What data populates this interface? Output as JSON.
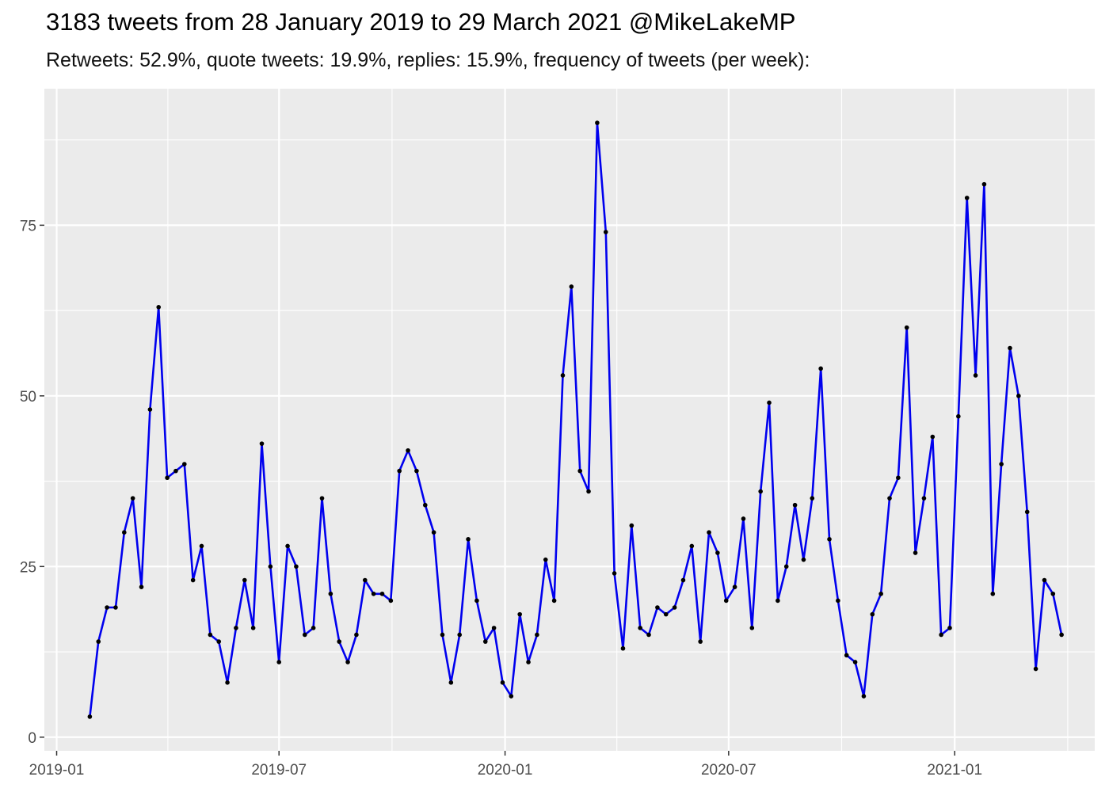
{
  "title": "3183 tweets from 28 January 2019 to 29 March 2021 @MikeLakeMP",
  "subtitle": "Retweets: 52.9%, quote tweets: 19.9%, replies: 15.9%, frequency of tweets (per week):",
  "colors": {
    "panel": "#ebebeb",
    "grid": "#ffffff",
    "line": "#0000ee",
    "point": "#000000",
    "tick_text": "#4d4d4d"
  },
  "chart_data": {
    "type": "line",
    "title": "3183 tweets from 28 January 2019 to 29 March 2021 @MikeLakeMP",
    "subtitle": "Retweets: 52.9%, quote tweets: 19.9%, replies: 15.9%, frequency of tweets (per week):",
    "xlabel": "",
    "ylabel": "",
    "grid": true,
    "legend": "none",
    "x_axis": {
      "type": "date",
      "range": [
        "2018-12-22",
        "2021-04-25"
      ],
      "ticks": [
        "2019-01",
        "2019-07",
        "2020-01",
        "2020-07",
        "2021-01"
      ]
    },
    "y_axis": {
      "range": [
        -2,
        95
      ],
      "ticks": [
        "0",
        "25",
        "50",
        "75"
      ]
    },
    "series": [
      {
        "x": [
          "2019-01-28",
          "2019-02-04",
          "2019-02-11",
          "2019-02-18",
          "2019-02-25",
          "2019-03-04",
          "2019-03-11",
          "2019-03-18",
          "2019-03-25",
          "2019-04-01",
          "2019-04-08",
          "2019-04-15",
          "2019-04-22",
          "2019-04-29",
          "2019-05-06",
          "2019-05-13",
          "2019-05-20",
          "2019-05-27",
          "2019-06-03",
          "2019-06-10",
          "2019-06-17",
          "2019-06-24",
          "2019-07-01",
          "2019-07-08",
          "2019-07-15",
          "2019-07-22",
          "2019-07-29",
          "2019-08-05",
          "2019-08-12",
          "2019-08-19",
          "2019-08-26",
          "2019-09-02",
          "2019-09-09",
          "2019-09-16",
          "2019-09-23",
          "2019-09-30",
          "2019-10-07",
          "2019-10-14",
          "2019-10-21",
          "2019-10-28",
          "2019-11-04",
          "2019-11-11",
          "2019-11-18",
          "2019-11-25",
          "2019-12-02",
          "2019-12-09",
          "2019-12-16",
          "2019-12-23",
          "2019-12-30",
          "2020-01-06",
          "2020-01-13",
          "2020-01-20",
          "2020-01-27",
          "2020-02-03",
          "2020-02-10",
          "2020-02-17",
          "2020-02-24",
          "2020-03-02",
          "2020-03-09",
          "2020-03-16",
          "2020-03-23",
          "2020-03-30",
          "2020-04-06",
          "2020-04-13",
          "2020-04-20",
          "2020-04-27",
          "2020-05-04",
          "2020-05-11",
          "2020-05-18",
          "2020-05-25",
          "2020-06-01",
          "2020-06-08",
          "2020-06-15",
          "2020-06-22",
          "2020-06-29",
          "2020-07-06",
          "2020-07-13",
          "2020-07-20",
          "2020-07-27",
          "2020-08-03",
          "2020-08-10",
          "2020-08-17",
          "2020-08-24",
          "2020-08-31",
          "2020-09-07",
          "2020-09-14",
          "2020-09-21",
          "2020-09-28",
          "2020-10-05",
          "2020-10-12",
          "2020-10-19",
          "2020-10-26",
          "2020-11-02",
          "2020-11-09",
          "2020-11-16",
          "2020-11-23",
          "2020-11-30",
          "2020-12-07",
          "2020-12-14",
          "2020-12-21",
          "2020-12-28",
          "2021-01-04",
          "2021-01-11",
          "2021-01-18",
          "2021-01-25",
          "2021-02-01",
          "2021-02-08",
          "2021-02-15",
          "2021-02-22",
          "2021-03-01",
          "2021-03-08",
          "2021-03-15",
          "2021-03-22",
          "2021-03-29"
        ],
        "values": [
          3,
          14,
          19,
          19,
          30,
          35,
          22,
          48,
          63,
          38,
          39,
          40,
          23,
          28,
          15,
          14,
          8,
          16,
          23,
          16,
          43,
          25,
          11,
          28,
          25,
          15,
          16,
          35,
          21,
          14,
          11,
          15,
          23,
          21,
          21,
          20,
          39,
          42,
          39,
          34,
          30,
          15,
          8,
          15,
          29,
          20,
          14,
          16,
          8,
          6,
          18,
          11,
          15,
          26,
          20,
          53,
          66,
          39,
          36,
          90,
          74,
          24,
          13,
          31,
          16,
          15,
          19,
          18,
          19,
          23,
          28,
          14,
          30,
          27,
          20,
          22,
          32,
          16,
          36,
          49,
          20,
          25,
          34,
          26,
          35,
          54,
          29,
          20,
          12,
          11,
          6,
          18,
          21,
          35,
          38,
          60,
          27,
          35,
          44,
          15,
          16,
          47,
          79,
          53,
          81,
          21,
          40,
          57,
          50,
          33,
          10,
          23,
          21,
          15
        ]
      }
    ]
  }
}
